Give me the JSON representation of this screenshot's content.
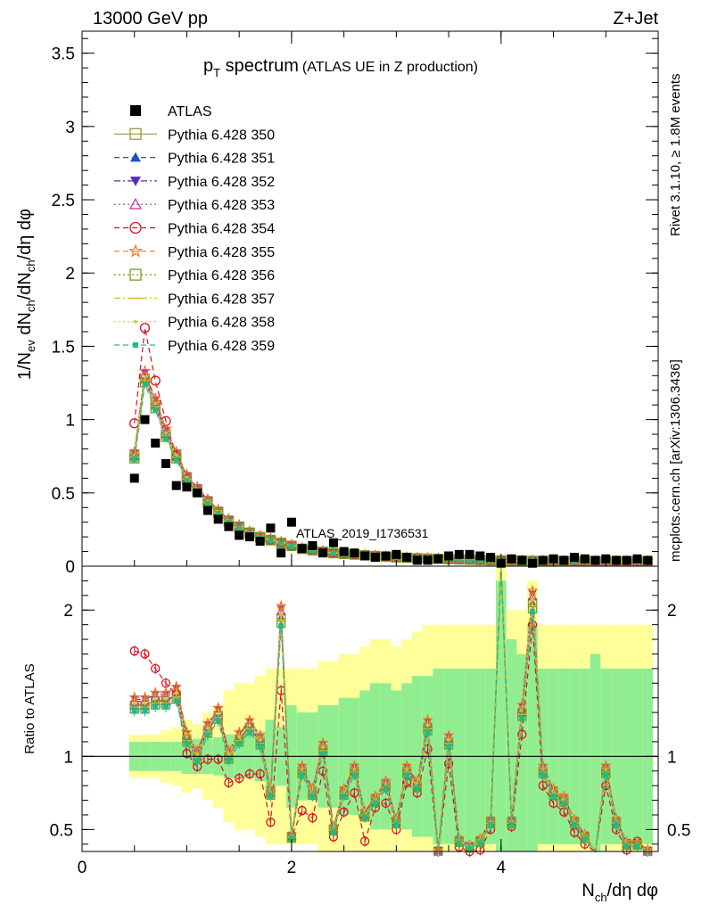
{
  "header": {
    "energy": "13000 GeV pp",
    "process": "Z+Jet"
  },
  "side_labels": {
    "rivet": "Rivet 3.1.10, ≥ 1.8M events",
    "source": "mcplots.cern.ch [arXiv:1306.3436]"
  },
  "plot_title": {
    "main": "p",
    "main_sub": "T",
    "main_rest": " spectrum",
    "paren": "(ATLAS UE in Z production)"
  },
  "analysis_id": "ATLAS_2019_I1736531",
  "ratio_ylabel": "Ratio to ATLAS",
  "colors": {
    "band_inner": "#90ee90",
    "band_outer": "#ffff99",
    "data": "#000000"
  },
  "chart_data": {
    "type": "scatter",
    "xlabel_main": "N",
    "xlabel_sub": "ch",
    "xlabel_rest": "/dη dφ",
    "ylabel": "1/N_ev dN_ch/dN_ch/dη dφ",
    "xlim": [
      0,
      5.5
    ],
    "ylim_main": [
      0,
      3.65
    ],
    "ylim_ratio": [
      0.35,
      2.3
    ],
    "x_ticks": [
      "0",
      "2",
      "4"
    ],
    "y_ticks_main": [
      "0",
      "0.5",
      "1",
      "1.5",
      "2",
      "2.5",
      "3",
      "3.5"
    ],
    "y_ticks_ratio": [
      "0.5",
      "1",
      "2"
    ],
    "data_series": {
      "name": "ATLAS",
      "x": [
        0.5,
        0.6,
        0.7,
        0.8,
        0.9,
        1.0,
        1.1,
        1.2,
        1.3,
        1.4,
        1.5,
        1.6,
        1.7,
        1.8,
        1.9,
        2.0,
        2.1,
        2.2,
        2.3,
        2.4,
        2.5,
        2.6,
        2.7,
        2.8,
        2.9,
        3.0,
        3.1,
        3.2,
        3.3,
        3.4,
        3.5,
        3.6,
        3.7,
        3.8,
        3.9,
        4.0,
        4.1,
        4.2,
        4.3,
        4.4,
        4.5,
        4.6,
        4.7,
        4.8,
        4.9,
        5.0,
        5.1,
        5.2,
        5.3,
        5.4
      ],
      "y": [
        0.6,
        1.0,
        0.84,
        0.7,
        0.55,
        0.54,
        0.5,
        0.38,
        0.32,
        0.27,
        0.21,
        0.2,
        0.17,
        0.26,
        0.09,
        0.3,
        0.12,
        0.14,
        0.09,
        0.16,
        0.1,
        0.09,
        0.07,
        0.06,
        0.07,
        0.08,
        0.06,
        0.04,
        0.04,
        0.05,
        0.07,
        0.08,
        0.08,
        0.07,
        0.06,
        0.02,
        0.05,
        0.04,
        0.02,
        0.04,
        0.05,
        0.04,
        0.06,
        0.05,
        0.04,
        0.05,
        0.04,
        0.04,
        0.05,
        0.04
      ]
    },
    "mc_shape": [
      0.75,
      1.28,
      1.1,
      0.9,
      0.75,
      0.6,
      0.52,
      0.44,
      0.37,
      0.31,
      0.27,
      0.23,
      0.2,
      0.18,
      0.16,
      0.14,
      0.12,
      0.11,
      0.1,
      0.09,
      0.085,
      0.08,
      0.075,
      0.07,
      0.065,
      0.06,
      0.058,
      0.055,
      0.052,
      0.05,
      0.048,
      0.046,
      0.044,
      0.042,
      0.04,
      0.04,
      0.039,
      0.038,
      0.037,
      0.036,
      0.036,
      0.035,
      0.035,
      0.034,
      0.034,
      0.033,
      0.033,
      0.033,
      0.032,
      0.032
    ],
    "ratio_shape": [
      1.35,
      1.35,
      1.38,
      1.38,
      1.42,
      1.12,
      1.0,
      1.18,
      1.28,
      1.0,
      1.12,
      1.2,
      1.1,
      0.75,
      1.95,
      0.45,
      0.9,
      0.75,
      1.05,
      0.5,
      0.75,
      0.9,
      0.6,
      0.7,
      0.8,
      0.55,
      0.9,
      0.8,
      1.2,
      0.35,
      1.1,
      0.42,
      0.38,
      0.42,
      0.55,
      2.6,
      0.55,
      1.3,
      2.05,
      0.9,
      0.75,
      0.7,
      0.55,
      0.45,
      0.3,
      0.9,
      0.55,
      0.4,
      0.4,
      0.35
    ],
    "ratio_354": [
      1.72,
      1.7,
      1.6,
      1.5,
      1.42,
      1.02,
      0.93,
      0.98,
      0.98,
      0.82,
      0.85,
      0.88,
      0.88,
      0.55,
      1.45,
      0.45,
      0.63,
      0.58,
      0.9,
      0.45,
      0.62,
      0.75,
      0.42,
      0.65,
      0.68,
      0.5,
      0.82,
      0.75,
      1.05,
      0.33,
      0.95,
      0.38,
      0.35,
      0.36,
      0.5,
      2.45,
      0.52,
      1.15,
      1.9,
      0.8,
      0.68,
      0.62,
      0.48,
      0.4,
      0.28,
      0.8,
      0.5,
      0.36,
      0.42,
      0.33
    ],
    "band_inner": [
      0.1,
      0.1,
      0.1,
      0.1,
      0.1,
      0.12,
      0.12,
      0.12,
      0.13,
      0.15,
      0.15,
      0.15,
      0.17,
      0.25,
      0.2,
      0.35,
      0.3,
      0.3,
      0.35,
      0.35,
      0.4,
      0.4,
      0.45,
      0.5,
      0.5,
      0.45,
      0.5,
      0.55,
      0.55,
      0.6,
      0.6,
      0.6,
      0.6,
      0.6,
      0.6,
      1.2,
      0.8,
      0.7,
      0.9,
      0.6,
      0.6,
      0.6,
      0.6,
      0.6,
      0.7,
      0.6,
      0.6,
      0.6,
      0.6,
      0.6
    ],
    "band_outer": [
      0.15,
      0.15,
      0.15,
      0.18,
      0.2,
      0.25,
      0.22,
      0.3,
      0.35,
      0.45,
      0.5,
      0.5,
      0.55,
      0.6,
      0.6,
      0.6,
      0.6,
      0.6,
      0.65,
      0.65,
      0.7,
      0.7,
      0.75,
      0.8,
      0.8,
      0.75,
      0.8,
      0.85,
      0.9,
      0.9,
      0.9,
      0.9,
      0.9,
      0.9,
      0.9,
      1.5,
      1.0,
      1.0,
      1.2,
      0.9,
      0.9,
      0.9,
      0.9,
      0.9,
      0.9,
      0.9,
      0.9,
      0.9,
      0.9,
      0.9
    ],
    "series": [
      {
        "name": "ATLAS",
        "color": "#000000",
        "marker": "square-filled",
        "line": "none"
      },
      {
        "name": "Pythia 6.428 350",
        "color": "#999933",
        "marker": "square-open",
        "line": "solid",
        "offset": 0.0
      },
      {
        "name": "Pythia 6.428 351",
        "color": "#1f4fd0",
        "marker": "triangle-up-filled",
        "line": "dashed",
        "offset": 0.0
      },
      {
        "name": "Pythia 6.428 352",
        "color": "#5b2bbf",
        "marker": "triangle-down-filled",
        "line": "dashdot",
        "offset": 0.03
      },
      {
        "name": "Pythia 6.428 353",
        "color": "#c0309a",
        "marker": "triangle-up-open",
        "line": "dotted",
        "offset": 0.02
      },
      {
        "name": "Pythia 6.428 354",
        "color": "#dd1122",
        "marker": "circle-open",
        "line": "dashed",
        "offset": 0.0
      },
      {
        "name": "Pythia 6.428 355",
        "color": "#ee7722",
        "marker": "star-open",
        "line": "dashed",
        "offset": 0.04
      },
      {
        "name": "Pythia 6.428 356",
        "color": "#779922",
        "marker": "square-open",
        "line": "dotted",
        "offset": -0.02
      },
      {
        "name": "Pythia 6.428 357",
        "color": "#ddbb22",
        "marker": "dash",
        "line": "dashdot",
        "offset": -0.01
      },
      {
        "name": "Pythia 6.428 358",
        "color": "#cccc33",
        "marker": "dot",
        "line": "dotted",
        "offset": 0.01
      },
      {
        "name": "Pythia 6.428 359",
        "color": "#22bb88",
        "marker": "square-small",
        "line": "dashed",
        "offset": -0.03
      }
    ]
  }
}
